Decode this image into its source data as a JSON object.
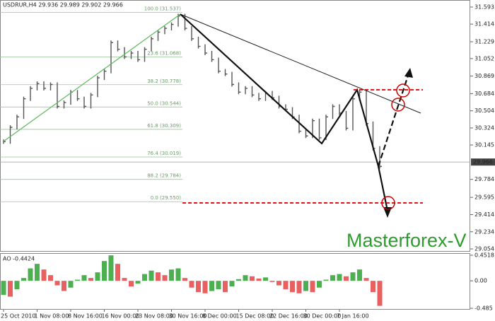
{
  "chart_data": [
    {
      "type": "line",
      "title": "USDRUR,H4  29.936 29.989 29.902 29.966",
      "values": [
        30.18,
        30.33,
        30.44,
        30.63,
        30.74,
        30.79,
        30.74,
        30.78,
        30.55,
        30.59,
        30.7,
        30.63,
        30.55,
        30.67,
        30.85,
        30.92,
        31.22,
        31.15,
        31.07,
        31.11,
        31.04,
        31.15,
        31.26,
        31.33,
        31.37,
        31.41,
        31.5,
        31.37,
        31.26,
        31.18,
        31.11,
        31.04,
        30.92,
        30.89,
        30.78,
        30.7,
        30.74,
        30.67,
        30.63,
        30.69,
        30.64,
        30.55,
        30.52,
        30.44,
        30.29,
        30.24,
        30.4,
        30.22,
        30.44,
        30.55,
        30.48,
        30.32,
        30.63,
        30.7,
        30.37,
        30.11,
        29.92
      ],
      "color": "#555555",
      "ylim": [
        29.032,
        31.667
      ],
      "yticks": [
        31.593,
        31.414,
        31.229,
        31.052,
        30.869,
        30.684,
        30.504,
        30.324,
        30.145,
        29.784,
        29.595,
        29.414,
        29.234,
        29.054
      ],
      "current_price": 29.966,
      "fib_levels": [
        {
          "value": 31.537,
          "label": "100.0 (31.537)"
        },
        {
          "value": 31.068,
          "label": "23.6 (31.068)"
        },
        {
          "value": 30.778,
          "label": "38.2 (30.778)"
        },
        {
          "value": 30.544,
          "label": "50.0 (30.544)"
        },
        {
          "value": 30.309,
          "label": "61.8 (30.309)"
        },
        {
          "value": 30.019,
          "label": "76.4 (30.019)"
        },
        {
          "value": 29.784,
          "label": "88.2 (29.784)"
        },
        {
          "value": 29.55,
          "label": "0.0 (29.550)"
        }
      ],
      "watermark": "Masterforex-V"
    },
    {
      "type": "bar",
      "title": "AO -0.4424",
      "categories": [
        "25 Oct 2010",
        null,
        null,
        null,
        null,
        "1 Nov 08:00",
        null,
        null,
        null,
        null,
        "8 Nov 16:00",
        null,
        null,
        null,
        null,
        "16 Nov 00:00",
        null,
        null,
        null,
        null,
        "23 Nov 08:00",
        null,
        null,
        null,
        null,
        "30 Nov 16:00",
        null,
        null,
        null,
        null,
        "8 Dec 00:00",
        null,
        null,
        null,
        null,
        "15 Dec 08:00",
        null,
        null,
        null,
        null,
        "22 Dec 16:00",
        null,
        null,
        null,
        null,
        "30 Dec 00:00",
        null,
        null,
        null,
        null,
        "7 Jan 16:00",
        null,
        null,
        null,
        null,
        null,
        null
      ],
      "values": [
        -0.25,
        -0.28,
        -0.15,
        0.05,
        0.22,
        0.3,
        0.2,
        0.1,
        -0.08,
        -0.18,
        -0.12,
        0.02,
        0.1,
        0.05,
        0.15,
        0.35,
        0.45,
        0.3,
        0.05,
        -0.1,
        -0.05,
        0.12,
        0.18,
        0.15,
        0.1,
        0.2,
        0.22,
        0.05,
        -0.12,
        -0.2,
        -0.22,
        -0.18,
        -0.15,
        -0.2,
        -0.1,
        0.03,
        0.1,
        0.08,
        0.04,
        0.06,
        -0.02,
        -0.08,
        -0.15,
        -0.2,
        -0.22,
        -0.18,
        -0.2,
        -0.12,
        0.02,
        0.1,
        0.12,
        0.08,
        0.15,
        0.2,
        0.05,
        -0.2,
        -0.4424
      ],
      "up_color": "#4caf50",
      "down_color": "#e86060",
      "ylim": [
        -0.485,
        0.4518
      ],
      "yticks": [
        0.4518,
        {
          "value": 0,
          "label": "0.00"
        },
        -0.485
      ]
    }
  ]
}
